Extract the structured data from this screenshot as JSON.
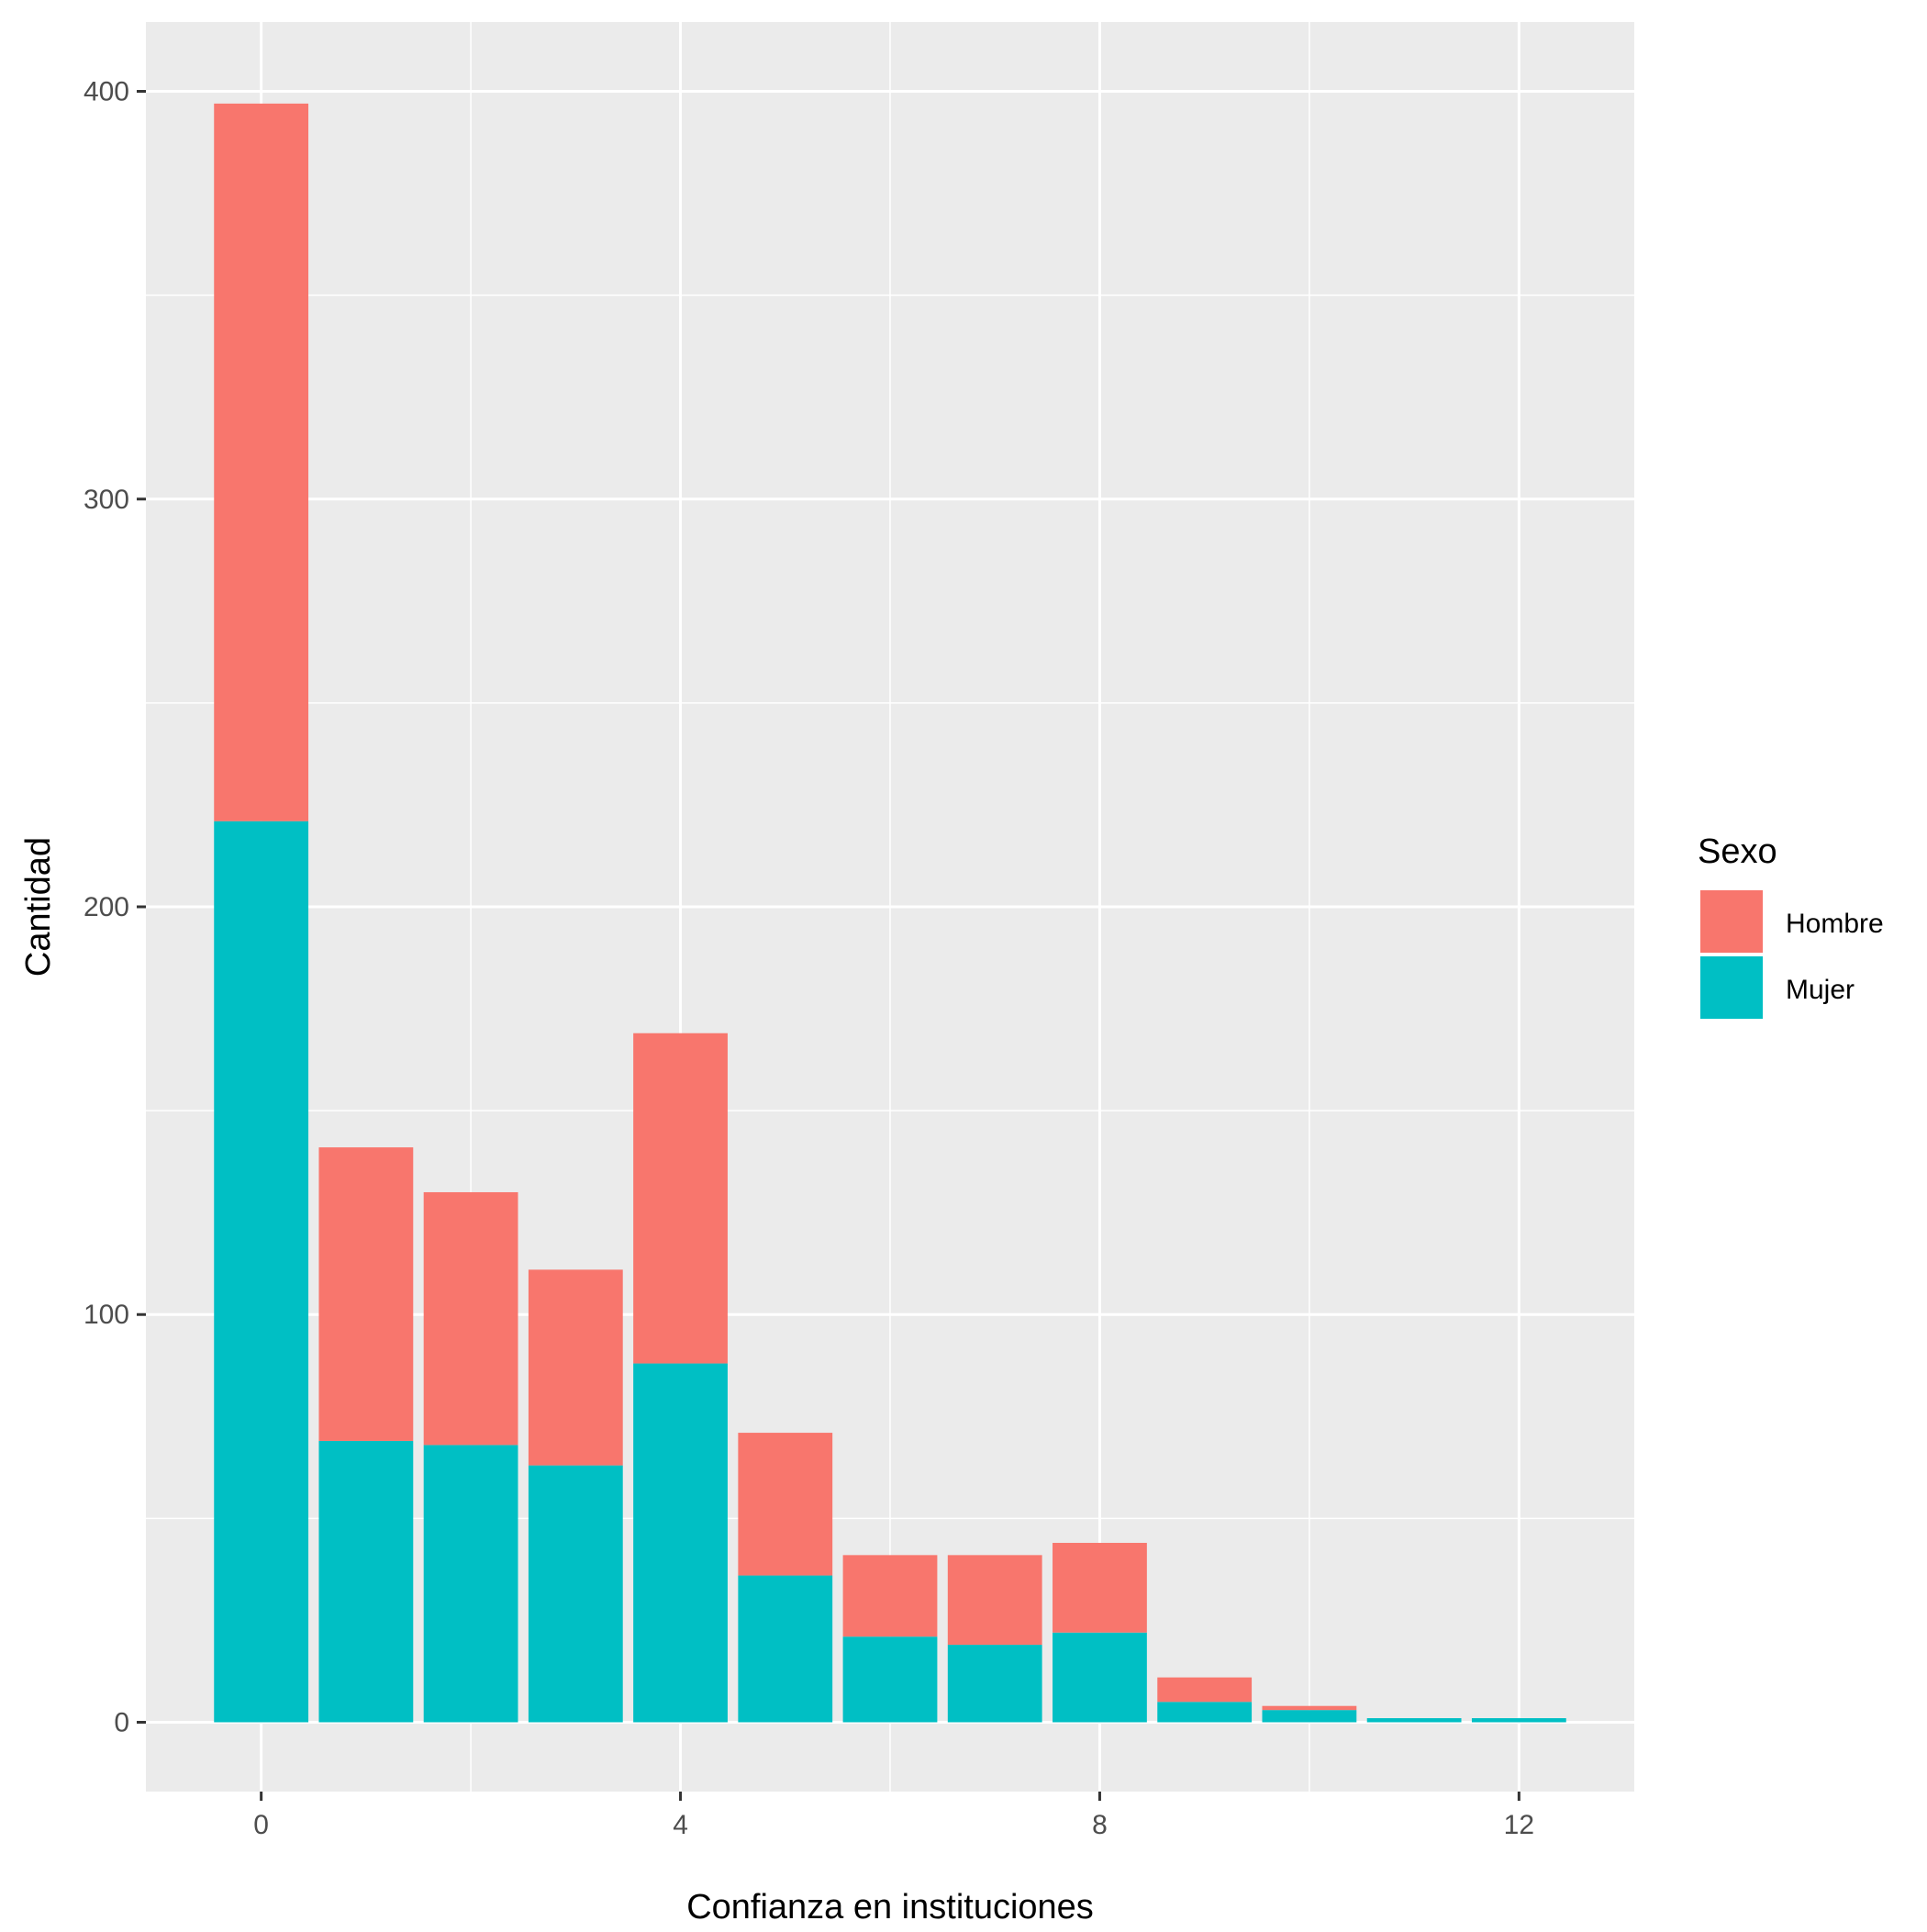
{
  "chart_data": {
    "type": "bar",
    "stacked": true,
    "title": "",
    "xlabel": "Confianza en instituciones",
    "ylabel": "Cantidad",
    "x": [
      0,
      1,
      2,
      3,
      4,
      5,
      6,
      7,
      8,
      9,
      10,
      11,
      12
    ],
    "xlim": [
      -1.1,
      13.1
    ],
    "ylim": [
      -17,
      417
    ],
    "x_ticks": [
      0,
      4,
      8,
      12
    ],
    "x_tick_labels": [
      "0",
      "4",
      "8",
      "12"
    ],
    "y_ticks": [
      0,
      100,
      200,
      300,
      400
    ],
    "y_tick_labels": [
      "0",
      "100",
      "200",
      "300",
      "400"
    ],
    "x_minor_ticks": [
      2,
      6,
      10
    ],
    "y_minor_ticks": [
      50,
      150,
      250,
      350
    ],
    "grid": true,
    "series": [
      {
        "name": "Mujer",
        "color": "#00BFC4",
        "values": [
          221,
          69,
          68,
          63,
          88,
          36,
          21,
          19,
          22,
          5,
          3,
          1,
          1
        ]
      },
      {
        "name": "Hombre",
        "color": "#F8766D",
        "values": [
          176,
          72,
          62,
          48,
          81,
          35,
          20,
          22,
          22,
          6,
          1,
          0,
          0
        ]
      }
    ],
    "legend": {
      "title": "Sexo",
      "position": "right",
      "entries": [
        {
          "label": "Hombre",
          "color": "#F8766D"
        },
        {
          "label": "Mujer",
          "color": "#00BFC4"
        }
      ]
    },
    "panel_background": "#EBEBEB",
    "grid_color": "#FFFFFF"
  }
}
